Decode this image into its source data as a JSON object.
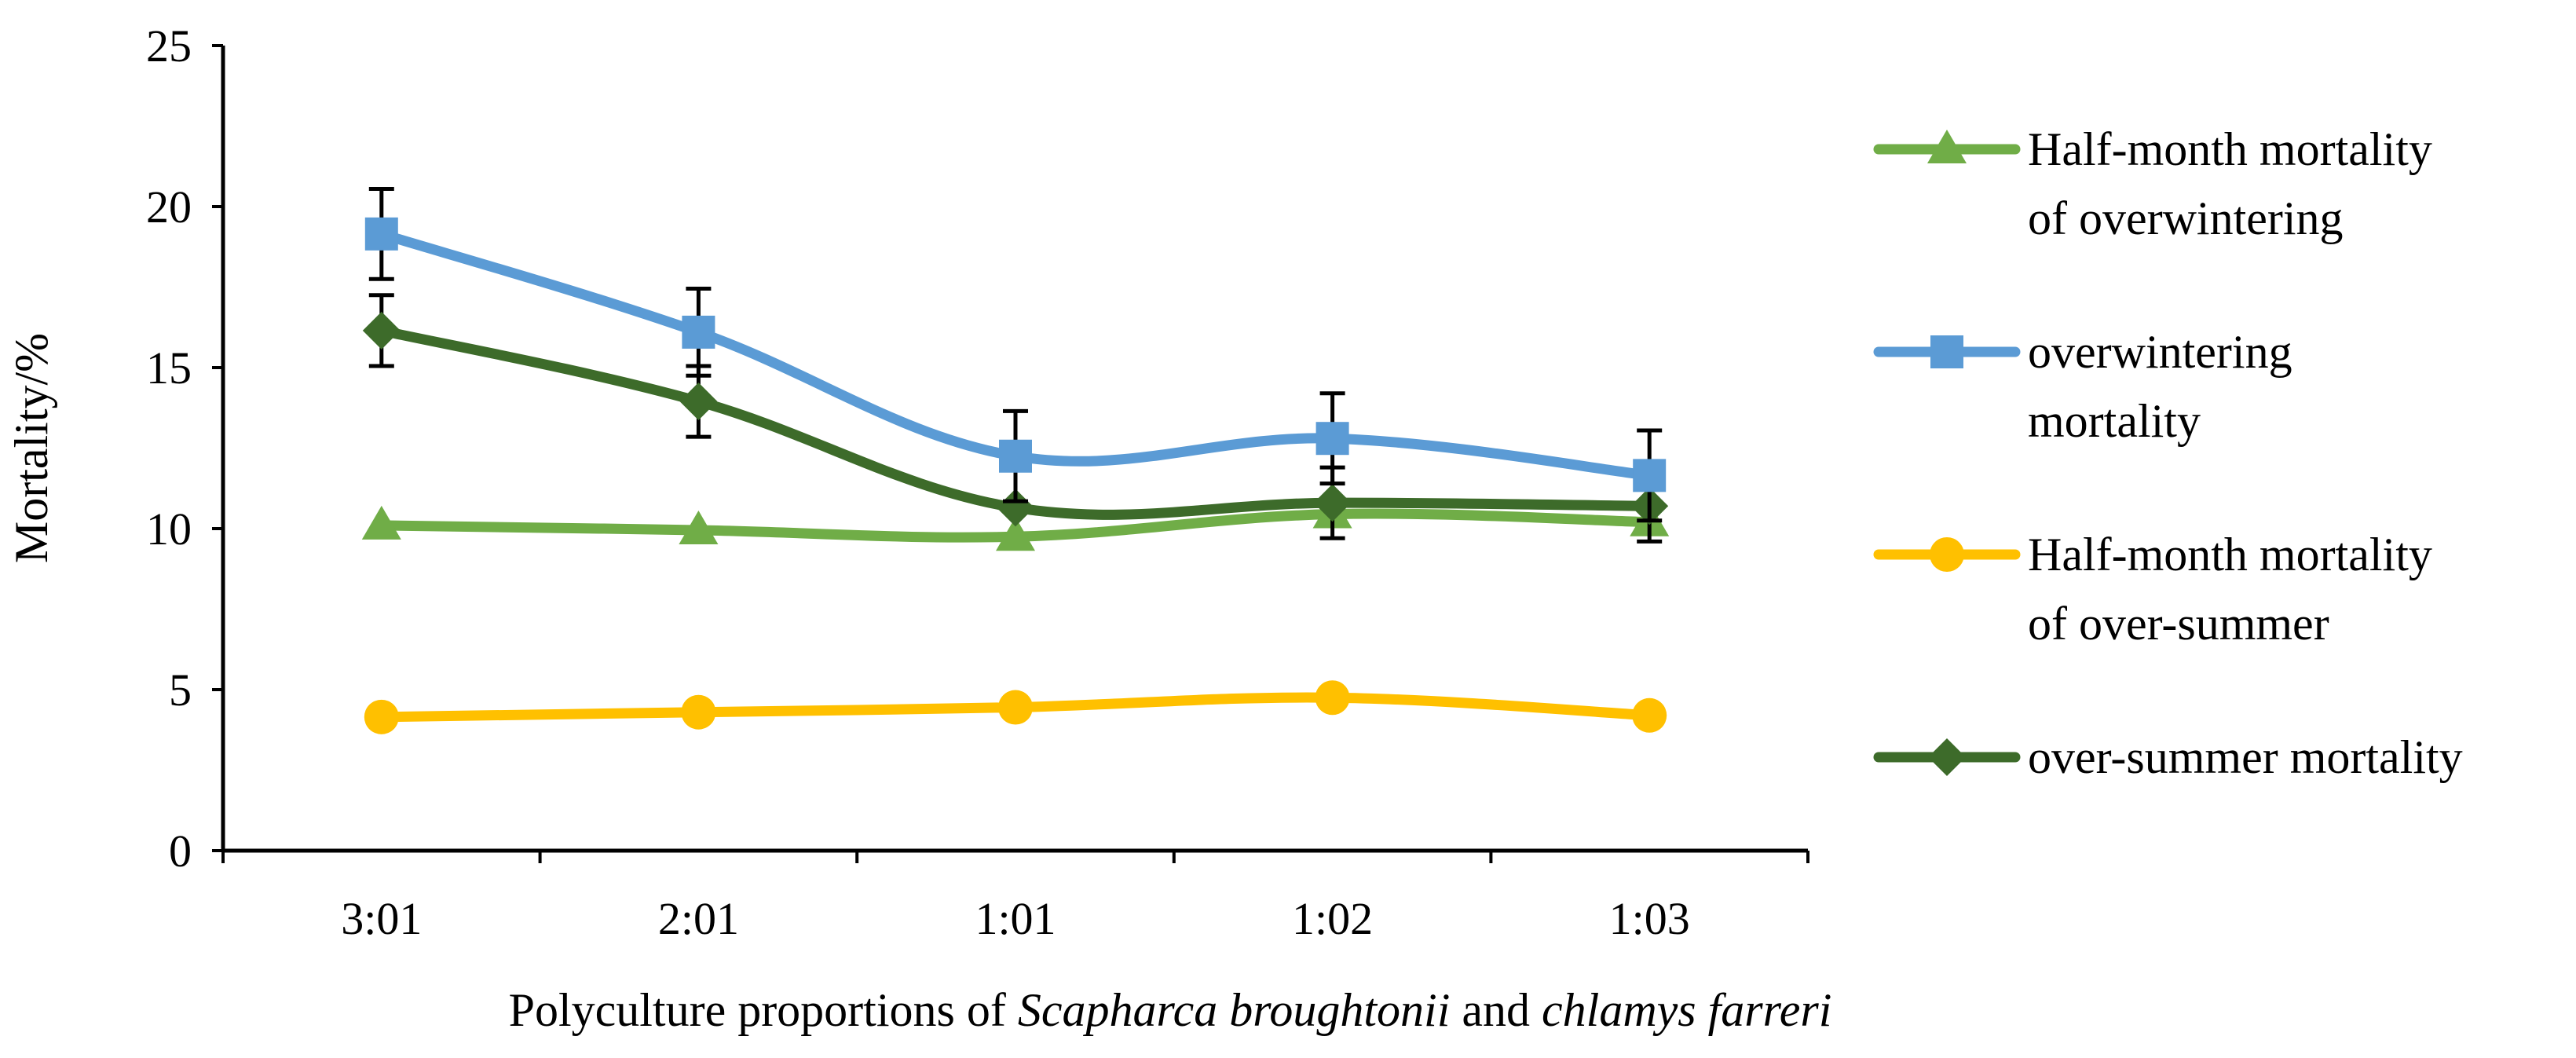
{
  "chart_data": {
    "type": "line",
    "title": "",
    "xlabel": {
      "prefix": "Polyculture proportions of ",
      "species1": "Scapharca broughtonii",
      "conjunction": " and ",
      "species2": "chlamys farreri"
    },
    "ylabel": "Mortality/%",
    "ylim": [
      0,
      25
    ],
    "yticks": [
      "0",
      "5",
      "10",
      "15",
      "20",
      "25"
    ],
    "categories": [
      "3:01",
      "2:01",
      "1:01",
      "1:02",
      "1:03"
    ],
    "legend_position": "right",
    "series": [
      {
        "name": "Half-month mortality of overwintering",
        "legend_lines": [
          "Half-month mortality",
          "of overwintering"
        ],
        "values": [
          10.1,
          9.95,
          9.75,
          10.45,
          10.2
        ],
        "error": [
          0,
          0,
          0,
          0,
          0
        ],
        "color": "#70AD47",
        "marker": "triangle"
      },
      {
        "name": "overwintering mortality",
        "legend_lines": [
          "overwintering",
          "mortality"
        ],
        "values": [
          19.15,
          16.1,
          12.25,
          12.8,
          11.65
        ],
        "error": [
          1.4,
          1.35,
          1.4,
          1.4,
          1.4
        ],
        "color": "#5B9BD5",
        "marker": "square"
      },
      {
        "name": "Half-month mortality of over-summer",
        "legend_lines": [
          "Half-month mortality",
          "of over-summer"
        ],
        "values": [
          4.15,
          4.3,
          4.45,
          4.75,
          4.2
        ],
        "error": [
          0,
          0,
          0,
          0,
          0
        ],
        "color": "#FFC000",
        "marker": "circle"
      },
      {
        "name": "over-summer mortality",
        "legend_lines": [
          "over-summer mortality"
        ],
        "values": [
          16.15,
          13.95,
          10.65,
          10.8,
          10.7
        ],
        "error": [
          1.1,
          1.1,
          0,
          1.1,
          1.1
        ],
        "color": "#3D6B2A",
        "marker": "diamond"
      }
    ]
  }
}
